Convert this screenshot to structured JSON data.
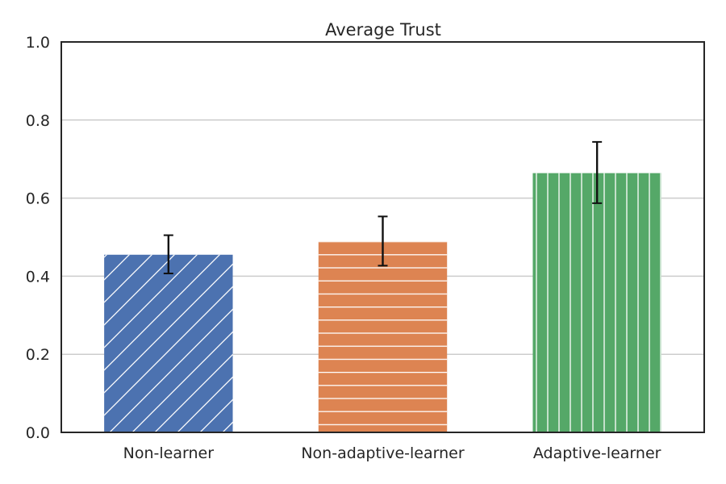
{
  "chart_data": {
    "type": "bar",
    "title": "Average Trust",
    "xlabel": "",
    "ylabel": "",
    "categories": [
      "Non-learner",
      "Non-adaptive-learner",
      "Adaptive-learner"
    ],
    "values": [
      0.455,
      0.488,
      0.664
    ],
    "error_low": [
      0.407,
      0.427,
      0.587
    ],
    "error_high": [
      0.505,
      0.553,
      0.744
    ],
    "ylim": [
      0,
      1.0
    ],
    "yticks": [
      "0.0",
      "0.2",
      "0.4",
      "0.6",
      "0.8",
      "1.0"
    ],
    "grid": true,
    "bar_colors": [
      "#4c72b0",
      "#dd8452",
      "#55a868"
    ],
    "hatches": [
      "diagonal",
      "horizontal",
      "vertical"
    ],
    "errorbar_color": "#111111",
    "grid_color": "#cccccc",
    "axis_color": "#262626"
  }
}
